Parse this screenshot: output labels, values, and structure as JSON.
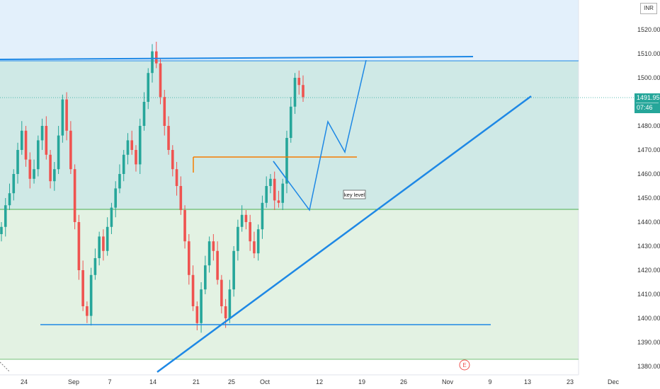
{
  "currency": "INR",
  "last_price": "1491.95",
  "countdown": "07:46",
  "annotation": "key level",
  "event_marker": "E",
  "y_ticks": [
    "1520.00",
    "1510.00",
    "1500.00",
    "1480.00",
    "1470.00",
    "1460.00",
    "1450.00",
    "1440.00",
    "1430.00",
    "1420.00",
    "1410.00",
    "1400.00",
    "1390.00",
    "1380.00"
  ],
  "x_ticks": [
    "24",
    "Sep",
    "7",
    "14",
    "21",
    "25",
    "Oct",
    "12",
    "19",
    "26",
    "Nov",
    "9",
    "13",
    "23",
    "Dec"
  ],
  "colors": {
    "up": "#26a69a",
    "down": "#ef5350",
    "zone_top": "#e3f0fb",
    "zone_mid": "#cfe9e6",
    "zone_low": "#e3f2e3",
    "trendline": "#1e88e5",
    "key_level": "#f57c00",
    "support": "#4caf50"
  },
  "chart_data": {
    "type": "candlestick",
    "series": [
      {
        "name": "",
        "values": [
          1438,
          1447,
          1452,
          1460,
          1470,
          1478,
          1466,
          1458,
          1462,
          1474,
          1480,
          1468,
          1457,
          1462,
          1476,
          1491,
          1478,
          1462,
          1440,
          1420,
          1405,
          1401,
          1418,
          1425,
          1434,
          1428,
          1438,
          1446,
          1454,
          1460,
          1468,
          1474,
          1470,
          1464,
          1480,
          1490,
          1502,
          1511,
          1506,
          1492,
          1480,
          1470,
          1462,
          1455,
          1445,
          1432,
          1418,
          1405,
          1398,
          1412,
          1422,
          1432,
          1428,
          1416,
          1405,
          1400,
          1412,
          1428,
          1438,
          1443,
          1440,
          1432,
          1427,
          1437,
          1448,
          1455,
          1458,
          1449,
          1448,
          1456,
          1475,
          1488,
          1500,
          1497,
          1492
        ]
      }
    ],
    "ylim": [
      1378,
      1526
    ],
    "levels": {
      "resistance": 1508,
      "key_level": 1467,
      "zone_boundary": 1445.8,
      "support": 1397.5,
      "bottom_line": 1382.5
    },
    "projection": [
      1467,
      1445,
      1482,
      1469,
      1507
    ]
  }
}
